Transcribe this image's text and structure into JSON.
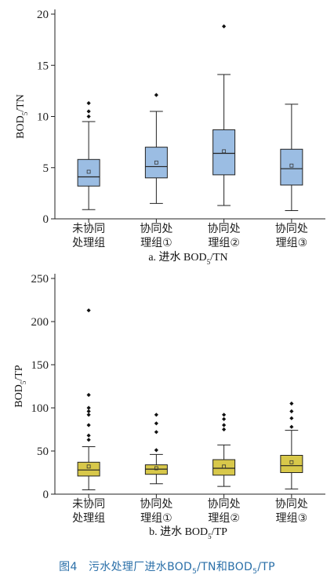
{
  "figure_caption": "图4　污水处理厂进水BOD5/TN和BOD5/TP",
  "chart_data": [
    {
      "type": "box",
      "ylabel": "BOD5/TN",
      "caption": "a. 进水 BOD5/TN",
      "ylim": [
        0,
        20
      ],
      "yticks": [
        0,
        5,
        10,
        15,
        20
      ],
      "box_color": "#9bbde3",
      "categories": [
        {
          "line1": "未协同",
          "line2": "处理组",
          "min": 0.9,
          "q1": 3.2,
          "median": 4.1,
          "q3": 5.8,
          "max": 9.5,
          "mean": 4.6,
          "outliers": [
            10.0,
            10.5,
            11.3
          ]
        },
        {
          "line1": "协同处",
          "line2": "理组①",
          "min": 1.5,
          "q1": 4.0,
          "median": 5.1,
          "q3": 7.0,
          "max": 10.5,
          "mean": 5.5,
          "outliers": [
            12.1
          ]
        },
        {
          "line1": "协同处",
          "line2": "理组②",
          "min": 1.3,
          "q1": 4.3,
          "median": 6.4,
          "q3": 8.7,
          "max": 14.1,
          "mean": 6.6,
          "outliers": [
            18.8
          ]
        },
        {
          "line1": "协同处",
          "line2": "理组③",
          "min": 0.8,
          "q1": 3.3,
          "median": 4.9,
          "q3": 6.8,
          "max": 11.2,
          "mean": 5.2,
          "outliers": []
        }
      ]
    },
    {
      "type": "box",
      "ylabel": "BOD5/TP",
      "caption": "b. 进水 BOD5/TP",
      "ylim": [
        0,
        250
      ],
      "yticks": [
        0,
        50,
        100,
        150,
        200,
        250
      ],
      "box_color": "#d8c84a",
      "categories": [
        {
          "line1": "未协同",
          "line2": "处理组",
          "min": 5,
          "q1": 21,
          "median": 28,
          "q3": 37,
          "max": 55,
          "mean": 32,
          "outliers": [
            63,
            68,
            80,
            92,
            96,
            100,
            115,
            213
          ]
        },
        {
          "line1": "协同处",
          "line2": "理组①",
          "min": 12,
          "q1": 23,
          "median": 29,
          "q3": 34,
          "max": 46,
          "mean": 30,
          "outliers": [
            51,
            72,
            82,
            92
          ]
        },
        {
          "line1": "协同处",
          "line2": "理组②",
          "min": 9,
          "q1": 22,
          "median": 30,
          "q3": 40,
          "max": 57,
          "mean": 32,
          "outliers": [
            75,
            80,
            87,
            92
          ]
        },
        {
          "line1": "协同处",
          "line2": "理组③",
          "min": 6,
          "q1": 25,
          "median": 33,
          "q3": 45,
          "max": 74,
          "mean": 37,
          "outliers": [
            78,
            88,
            96,
            105
          ]
        }
      ]
    }
  ]
}
